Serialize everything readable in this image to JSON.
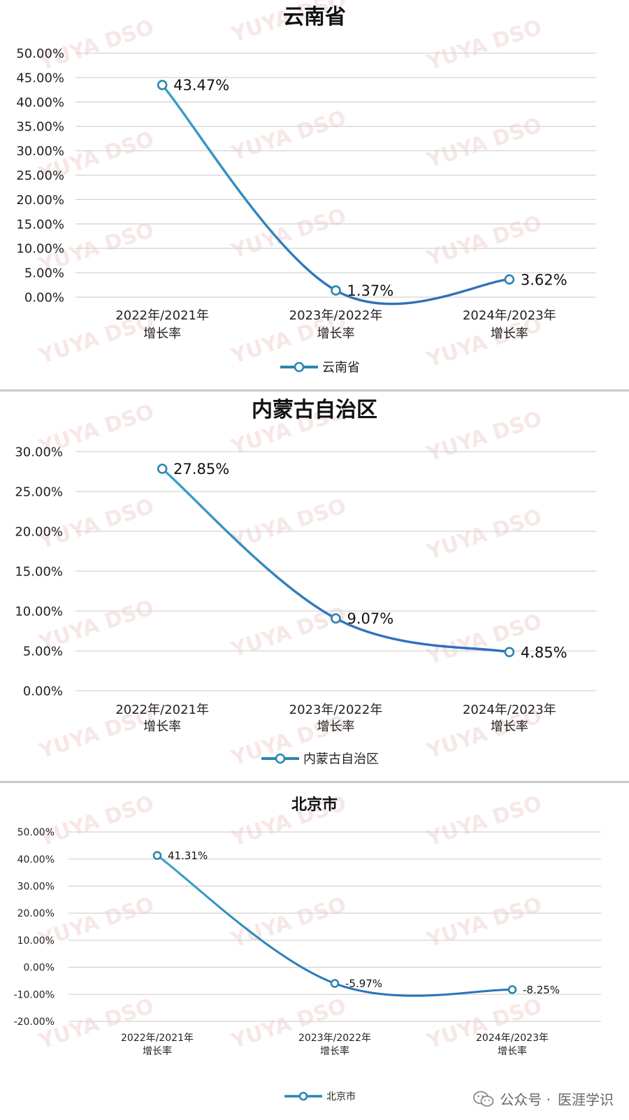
{
  "watermark": "YUYA DSO",
  "footer": {
    "account_prefix": "公众号 ·",
    "account_name": "医涯学识",
    "icon": "wechat-icon"
  },
  "chart_data": [
    {
      "type": "line",
      "title": "云南省",
      "categories": [
        [
          "2022年/2021年",
          "增长率"
        ],
        [
          "2023年/2022年",
          "增长率"
        ],
        [
          "2024年/2023年",
          "增长率"
        ]
      ],
      "series": [
        {
          "name": "云南省",
          "values": [
            43.47,
            1.37,
            3.62
          ]
        }
      ],
      "data_labels": [
        "43.47%",
        "1.37%",
        "3.62%"
      ],
      "ylim": [
        0,
        50
      ],
      "yticks": [
        "50.00%",
        "45.00%",
        "40.00%",
        "35.00%",
        "30.00%",
        "25.00%",
        "20.00%",
        "15.00%",
        "10.00%",
        "5.00%",
        "0.00%"
      ],
      "grid": true,
      "legend": "bottom",
      "color": "#2e6fb8"
    },
    {
      "type": "line",
      "title": "内蒙古自治区",
      "categories": [
        [
          "2022年/2021年",
          "增长率"
        ],
        [
          "2023年/2022年",
          "增长率"
        ],
        [
          "2024年/2023年",
          "增长率"
        ]
      ],
      "series": [
        {
          "name": "内蒙古自治区",
          "values": [
            27.85,
            9.07,
            4.85
          ]
        }
      ],
      "data_labels": [
        "27.85%",
        "9.07%",
        "4.85%"
      ],
      "ylim": [
        0,
        30
      ],
      "yticks": [
        "30.00%",
        "25.00%",
        "20.00%",
        "15.00%",
        "10.00%",
        "5.00%",
        "0.00%"
      ],
      "grid": true,
      "legend": "bottom",
      "color": "#2f6cbd"
    },
    {
      "type": "line",
      "title": "北京市",
      "categories": [
        [
          "2022年/2021年",
          "增长率"
        ],
        [
          "2023年/2022年",
          "增长率"
        ],
        [
          "2024年/2023年",
          "增长率"
        ]
      ],
      "series": [
        {
          "name": "北京市",
          "values": [
            41.31,
            -5.97,
            -8.25
          ]
        }
      ],
      "data_labels": [
        "41.31%",
        "-5.97%",
        "-8.25%"
      ],
      "ylim": [
        -20,
        50
      ],
      "yticks": [
        "50.00%",
        "40.00%",
        "30.00%",
        "20.00%",
        "10.00%",
        "0.00%",
        "-10.00%",
        "-20.00%"
      ],
      "grid": true,
      "legend": "bottom",
      "color": "#2a73b6"
    }
  ]
}
